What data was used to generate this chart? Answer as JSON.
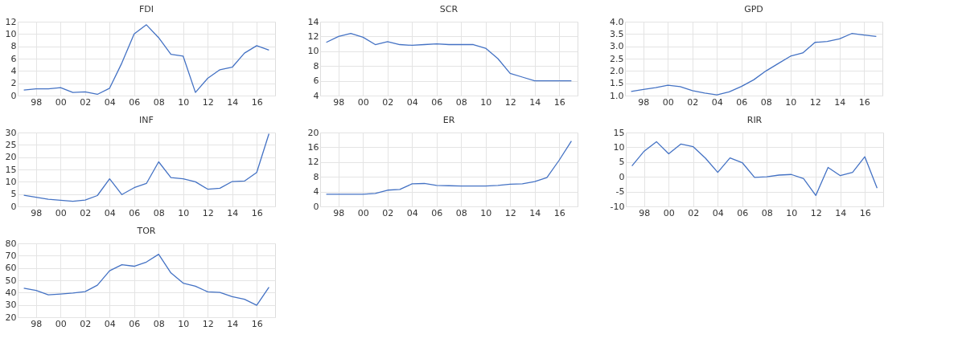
{
  "chart_data": [
    {
      "type": "line",
      "title": "FDI",
      "x": [
        1997,
        1998,
        1999,
        2000,
        2001,
        2002,
        2003,
        2004,
        2005,
        2006,
        2007,
        2008,
        2009,
        2010,
        2011,
        2012,
        2013,
        2014,
        2015,
        2016,
        2017
      ],
      "xlim": [
        1996.5,
        2017.5
      ],
      "xticks": [
        {
          "value": 1998,
          "label": "98"
        },
        {
          "value": 2000,
          "label": "00"
        },
        {
          "value": 2002,
          "label": "02"
        },
        {
          "value": 2004,
          "label": "04"
        },
        {
          "value": 2006,
          "label": "06"
        },
        {
          "value": 2008,
          "label": "08"
        },
        {
          "value": 2010,
          "label": "10"
        },
        {
          "value": 2012,
          "label": "12"
        },
        {
          "value": 2014,
          "label": "14"
        },
        {
          "value": 2016,
          "label": "16"
        }
      ],
      "ylim": [
        0,
        12
      ],
      "yticks": [
        0,
        2,
        4,
        6,
        8,
        10,
        12
      ],
      "grid": true,
      "series": [
        {
          "color": "#4472c4",
          "values": [
            0.9,
            1.1,
            1.1,
            1.3,
            0.5,
            0.6,
            0.2,
            1.2,
            5.3,
            10,
            11.5,
            9.4,
            6.7,
            6.4,
            0.5,
            2.8,
            4.2,
            4.6,
            6.9,
            8.1,
            7.4
          ]
        }
      ]
    },
    {
      "type": "line",
      "title": "SCR",
      "x": [
        1997,
        1998,
        1999,
        2000,
        2001,
        2002,
        2003,
        2004,
        2005,
        2006,
        2007,
        2008,
        2009,
        2010,
        2011,
        2012,
        2013,
        2014,
        2015,
        2016,
        2017
      ],
      "xlim": [
        1996.5,
        2017.5
      ],
      "xticks": [
        {
          "value": 1998,
          "label": "98"
        },
        {
          "value": 2000,
          "label": "00"
        },
        {
          "value": 2002,
          "label": "02"
        },
        {
          "value": 2004,
          "label": "04"
        },
        {
          "value": 2006,
          "label": "06"
        },
        {
          "value": 2008,
          "label": "08"
        },
        {
          "value": 2010,
          "label": "10"
        },
        {
          "value": 2012,
          "label": "12"
        },
        {
          "value": 2014,
          "label": "14"
        },
        {
          "value": 2016,
          "label": "16"
        }
      ],
      "ylim": [
        4,
        14
      ],
      "yticks": [
        4,
        6,
        8,
        10,
        12,
        14
      ],
      "grid": true,
      "series": [
        {
          "color": "#4472c4",
          "values": [
            11.2,
            12.0,
            12.4,
            11.9,
            10.9,
            11.3,
            10.9,
            10.8,
            10.9,
            11.0,
            10.9,
            10.9,
            10.9,
            10.4,
            9.0,
            7.0,
            6.5,
            6.0,
            6.0,
            6.0,
            6.0
          ]
        }
      ]
    },
    {
      "type": "line",
      "title": "GPD",
      "x": [
        1997,
        1998,
        1999,
        2000,
        2001,
        2002,
        2003,
        2004,
        2005,
        2006,
        2007,
        2008,
        2009,
        2010,
        2011,
        2012,
        2013,
        2014,
        2015,
        2016,
        2017
      ],
      "xlim": [
        1996.5,
        2017.5
      ],
      "xticks": [
        {
          "value": 1998,
          "label": "98"
        },
        {
          "value": 2000,
          "label": "00"
        },
        {
          "value": 2002,
          "label": "02"
        },
        {
          "value": 2004,
          "label": "04"
        },
        {
          "value": 2006,
          "label": "06"
        },
        {
          "value": 2008,
          "label": "08"
        },
        {
          "value": 2010,
          "label": "10"
        },
        {
          "value": 2012,
          "label": "12"
        },
        {
          "value": 2014,
          "label": "14"
        },
        {
          "value": 2016,
          "label": "16"
        }
      ],
      "ylim": [
        1,
        4
      ],
      "yticks": [
        {
          "value": 1,
          "label": "1.0"
        },
        1.5,
        {
          "value": 2,
          "label": "2.0"
        },
        2.5,
        {
          "value": 3,
          "label": "3.0"
        },
        3.5,
        {
          "value": 4,
          "label": "4.0"
        }
      ],
      "grid": true,
      "series": [
        {
          "color": "#4472c4",
          "values": [
            1.17,
            1.25,
            1.32,
            1.42,
            1.36,
            1.2,
            1.1,
            1.03,
            1.15,
            1.37,
            1.64,
            2.0,
            2.3,
            2.6,
            2.73,
            3.16,
            3.2,
            3.3,
            3.52,
            3.46,
            3.4
          ]
        }
      ]
    },
    {
      "type": "line",
      "title": "INF",
      "x": [
        1997,
        1998,
        1999,
        2000,
        2001,
        2002,
        2003,
        2004,
        2005,
        2006,
        2007,
        2008,
        2009,
        2010,
        2011,
        2012,
        2013,
        2014,
        2015,
        2016,
        2017
      ],
      "xlim": [
        1996.5,
        2017.5
      ],
      "xticks": [
        {
          "value": 1998,
          "label": "98"
        },
        {
          "value": 2000,
          "label": "00"
        },
        {
          "value": 2002,
          "label": "02"
        },
        {
          "value": 2004,
          "label": "04"
        },
        {
          "value": 2006,
          "label": "06"
        },
        {
          "value": 2008,
          "label": "08"
        },
        {
          "value": 2010,
          "label": "10"
        },
        {
          "value": 2012,
          "label": "12"
        },
        {
          "value": 2014,
          "label": "14"
        },
        {
          "value": 2016,
          "label": "16"
        }
      ],
      "ylim": [
        0,
        30
      ],
      "yticks": [
        0,
        5,
        10,
        15,
        20,
        25,
        30
      ],
      "grid": true,
      "series": [
        {
          "color": "#4472c4",
          "values": [
            4.5,
            3.7,
            2.9,
            2.5,
            2.1,
            2.6,
            4.4,
            11.2,
            4.8,
            7.6,
            9.3,
            18.1,
            11.7,
            11.2,
            10,
            7,
            7.4,
            10.1,
            10.3,
            13.8,
            29.5
          ]
        }
      ]
    },
    {
      "type": "line",
      "title": "ER",
      "x": [
        1997,
        1998,
        1999,
        2000,
        2001,
        2002,
        2003,
        2004,
        2005,
        2006,
        2007,
        2008,
        2009,
        2010,
        2011,
        2012,
        2013,
        2014,
        2015,
        2016,
        2017
      ],
      "xlim": [
        1996.5,
        2017.5
      ],
      "xticks": [
        {
          "value": 1998,
          "label": "98"
        },
        {
          "value": 2000,
          "label": "00"
        },
        {
          "value": 2002,
          "label": "02"
        },
        {
          "value": 2004,
          "label": "04"
        },
        {
          "value": 2006,
          "label": "06"
        },
        {
          "value": 2008,
          "label": "08"
        },
        {
          "value": 2010,
          "label": "10"
        },
        {
          "value": 2012,
          "label": "12"
        },
        {
          "value": 2014,
          "label": "14"
        },
        {
          "value": 2016,
          "label": "16"
        }
      ],
      "ylim": [
        0,
        20
      ],
      "yticks": [
        0,
        4,
        8,
        12,
        16,
        20
      ],
      "grid": true,
      "series": [
        {
          "color": "#4472c4",
          "values": [
            3.3,
            3.3,
            3.3,
            3.3,
            3.5,
            4.4,
            4.6,
            6.1,
            6.2,
            5.7,
            5.6,
            5.5,
            5.5,
            5.5,
            5.7,
            6.0,
            6.1,
            6.7,
            7.8,
            12.5,
            17.7
          ]
        }
      ]
    },
    {
      "type": "line",
      "title": "RIR",
      "x": [
        1997,
        1998,
        1999,
        2000,
        2001,
        2002,
        2003,
        2004,
        2005,
        2006,
        2007,
        2008,
        2009,
        2010,
        2011,
        2012,
        2013,
        2014,
        2015,
        2016,
        2017
      ],
      "xlim": [
        1996.5,
        2017.5
      ],
      "xticks": [
        {
          "value": 1998,
          "label": "98"
        },
        {
          "value": 2000,
          "label": "00"
        },
        {
          "value": 2002,
          "label": "02"
        },
        {
          "value": 2004,
          "label": "04"
        },
        {
          "value": 2006,
          "label": "06"
        },
        {
          "value": 2008,
          "label": "08"
        },
        {
          "value": 2010,
          "label": "10"
        },
        {
          "value": 2012,
          "label": "12"
        },
        {
          "value": 2014,
          "label": "14"
        },
        {
          "value": 2016,
          "label": "16"
        }
      ],
      "ylim": [
        -10,
        15
      ],
      "yticks": [
        -10,
        -5,
        0,
        5,
        10,
        15
      ],
      "grid": true,
      "series": [
        {
          "color": "#4472c4",
          "values": [
            3.7,
            8.7,
            11.9,
            7.8,
            11.1,
            10.2,
            6.3,
            1.5,
            6.4,
            4.8,
            -0.2,
            0,
            0.6,
            0.8,
            -0.6,
            -6.3,
            3.2,
            0.4,
            1.5,
            6.8,
            -3.8
          ]
        }
      ]
    },
    {
      "type": "line",
      "title": "TOR",
      "x": [
        1997,
        1998,
        1999,
        2000,
        2001,
        2002,
        2003,
        2004,
        2005,
        2006,
        2007,
        2008,
        2009,
        2010,
        2011,
        2012,
        2013,
        2014,
        2015,
        2016,
        2017
      ],
      "xlim": [
        1996.5,
        2017.5
      ],
      "xticks": [
        {
          "value": 1998,
          "label": "98"
        },
        {
          "value": 2000,
          "label": "00"
        },
        {
          "value": 2002,
          "label": "02"
        },
        {
          "value": 2004,
          "label": "04"
        },
        {
          "value": 2006,
          "label": "06"
        },
        {
          "value": 2008,
          "label": "08"
        },
        {
          "value": 2010,
          "label": "10"
        },
        {
          "value": 2012,
          "label": "12"
        },
        {
          "value": 2014,
          "label": "14"
        },
        {
          "value": 2016,
          "label": "16"
        }
      ],
      "ylim": [
        20,
        80
      ],
      "yticks": [
        20,
        30,
        40,
        50,
        60,
        70,
        80
      ],
      "grid": true,
      "series": [
        {
          "color": "#4472c4",
          "values": [
            43.5,
            41.7,
            38.2,
            38.8,
            39.6,
            40.8,
            46,
            57.7,
            62.6,
            61.4,
            64.8,
            71.1,
            56,
            47.7,
            45.2,
            40.6,
            40.2,
            36.7,
            34.6,
            29.7,
            44.3
          ]
        }
      ]
    }
  ]
}
